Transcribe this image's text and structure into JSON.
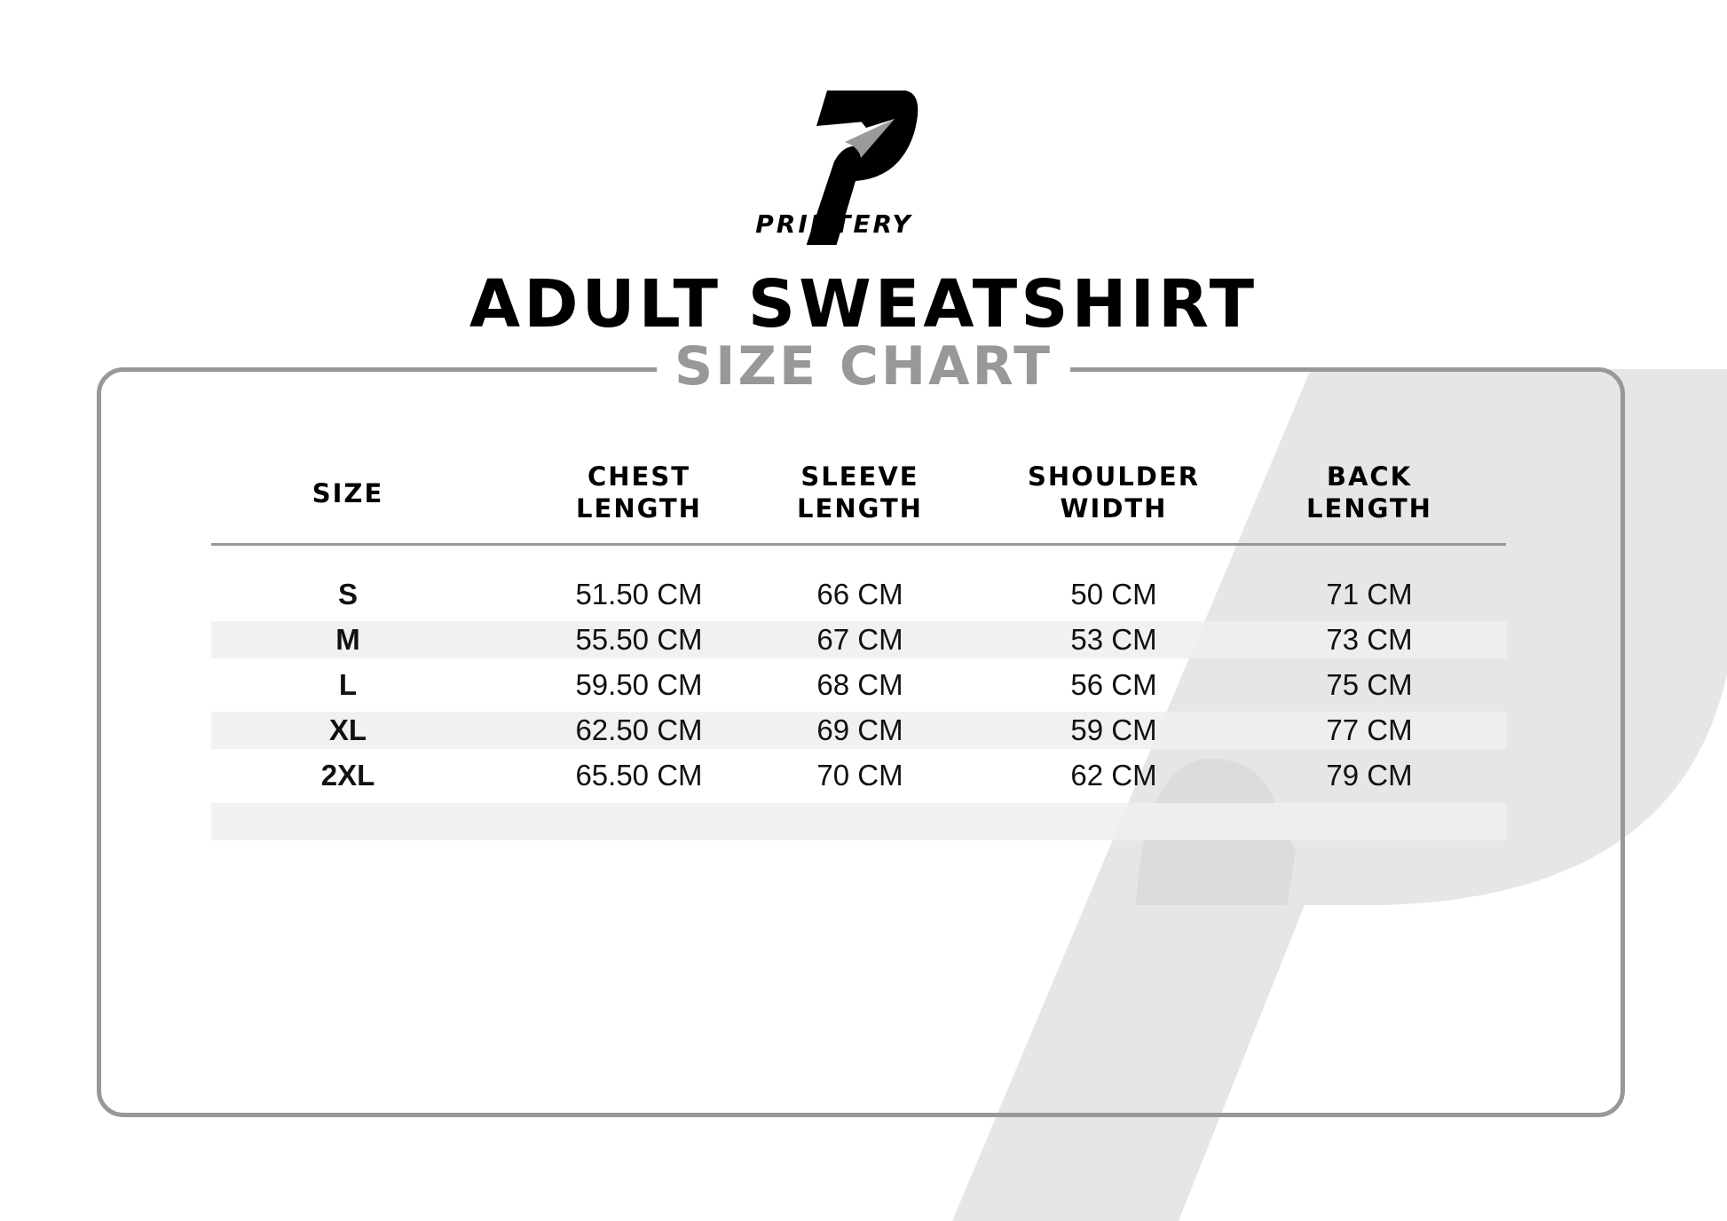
{
  "brand": {
    "name": "PRINTERY",
    "logo_icon": "printery-p-logo"
  },
  "title": "ADULT SWEATSHIRT",
  "subtitle": "SIZE CHART",
  "colors": {
    "accent_gray": "#98989b",
    "stripe": "#efeff3",
    "watermark": "#e6e6e6"
  },
  "table": {
    "headers": [
      [
        "SIZE"
      ],
      [
        "CHEST",
        "LENGTH"
      ],
      [
        "SLEEVE",
        "LENGTH"
      ],
      [
        "SHOULDER",
        "WIDTH"
      ],
      [
        "BACK",
        "LENGTH"
      ]
    ],
    "rows": [
      [
        "S",
        "51.50 CM",
        "66 CM",
        "50 CM",
        "71 CM"
      ],
      [
        "M",
        "55.50 CM",
        "67 CM",
        "53 CM",
        "73 CM"
      ],
      [
        "L",
        "59.50 CM",
        "68 CM",
        "56 CM",
        "75 CM"
      ],
      [
        "XL",
        "62.50 CM",
        "69 CM",
        "59 CM",
        "77 CM"
      ],
      [
        "2XL",
        "65.50 CM",
        "70 CM",
        "62 CM",
        "79 CM"
      ]
    ]
  }
}
